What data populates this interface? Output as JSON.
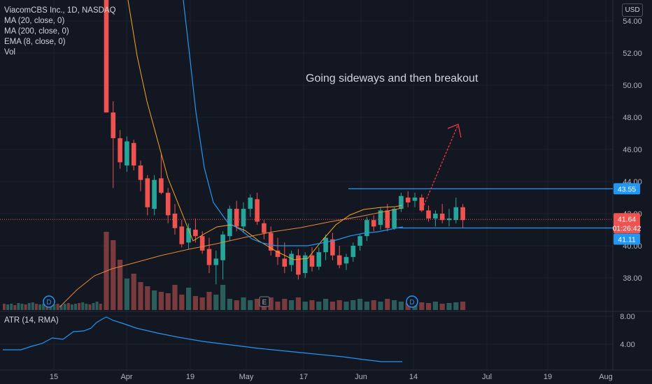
{
  "legend": {
    "symbol": "ViacomCBS Inc., 1D, NASDAQ",
    "indicators": [
      "MA (20, close, 0)",
      "MA (200, close, 0)",
      "EMA (8, close, 0)",
      "Vol"
    ]
  },
  "atr_legend": "ATR (14, RMA)",
  "currency": "USD",
  "annotation": "Going sideways and then breakout",
  "colors": {
    "background": "#131722",
    "up": "#26a69a",
    "down": "#ef5350",
    "ma20": "#f5a623",
    "ma200": "#e8873a",
    "ema8": "#2962ff",
    "hline": "#2196f3",
    "arrow": "#f23645"
  },
  "chart_data": {
    "type": "candlestick",
    "y_ticks": [
      "54.00",
      "52.00",
      "50.00",
      "48.00",
      "46.00",
      "44.00",
      "42.00",
      "40.00",
      "38.00"
    ],
    "y_tick_values": [
      54,
      52,
      50,
      48,
      46,
      44,
      42,
      40,
      38
    ],
    "ylim": [
      36.6,
      55.3
    ],
    "x_ticks": [
      "15",
      "Apr",
      "19",
      "May",
      "17",
      "Jun",
      "14",
      "Jul",
      "19",
      "Aug"
    ],
    "price_labels": {
      "resistance": "43.55",
      "current": "41.64",
      "countdown": "01:26:42",
      "support": "41.11"
    },
    "levels": {
      "resistance": 43.55,
      "support": 41.11,
      "current": 41.64
    },
    "atr_ticks": [
      "8.00",
      "4.00"
    ],
    "atr_tick_values": [
      8,
      4
    ],
    "events": [
      "D",
      "E",
      "D"
    ]
  }
}
